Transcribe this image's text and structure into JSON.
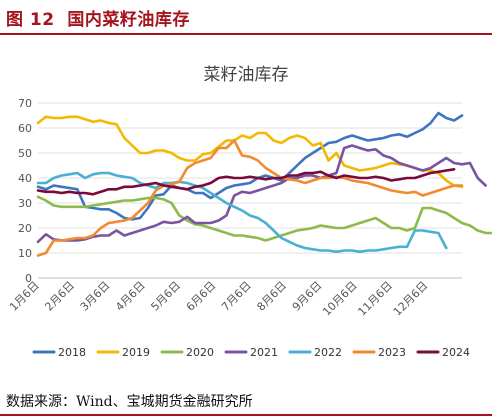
{
  "figure": {
    "label": "图 12",
    "title": "国内菜籽油库存",
    "source": "数据来源：Wind、宝城期货金融研究所"
  },
  "chart_data": {
    "type": "line",
    "title": "菜籽油库存",
    "xlabel": "",
    "ylabel": "",
    "ylim": [
      0,
      70
    ],
    "yticks": [
      0,
      10,
      20,
      30,
      40,
      50,
      60,
      70
    ],
    "xticks": [
      "1月6日",
      "2月6日",
      "3月6日",
      "4月6日",
      "5月6日",
      "6月6日",
      "7月6日",
      "8月6日",
      "9月6日",
      "10月6日",
      "11月6日",
      "12月6日"
    ],
    "x_unit": "week",
    "weeks": 52,
    "grid": "horizontal",
    "legend_position": "bottom",
    "series": [
      {
        "name": "2018",
        "color": "#3e75c2",
        "values": [
          36.5,
          35.5,
          37,
          36.5,
          36,
          35.5,
          28.5,
          28,
          27.5,
          27.5,
          26,
          24,
          23.5,
          24,
          28,
          33,
          33.5,
          37,
          36,
          35.5,
          34,
          34,
          32,
          34,
          36,
          37,
          37.5,
          38,
          40,
          41,
          40,
          39,
          42,
          45,
          48,
          50,
          52,
          54,
          54.5,
          56,
          57,
          56,
          55,
          55.5,
          56,
          57,
          57.5,
          56.5,
          58,
          59.5,
          62,
          66,
          64,
          63,
          65
        ]
      },
      {
        "name": "2019",
        "color": "#f5b800",
        "values": [
          62,
          64.5,
          64,
          64,
          64.5,
          64.5,
          63.5,
          62.5,
          63,
          62,
          61.5,
          56,
          53,
          50,
          50,
          51,
          51,
          50,
          48,
          47,
          47,
          49.5,
          50,
          52.5,
          55,
          55,
          57,
          56,
          58,
          58,
          55,
          54,
          56,
          57,
          56,
          53,
          54,
          47,
          50,
          45,
          44,
          43,
          43.5,
          44,
          45,
          46,
          45.5,
          45,
          44,
          43,
          43,
          42,
          39,
          37,
          36.5
        ]
      },
      {
        "name": "2020",
        "color": "#8dbb4a",
        "values": [
          32.5,
          31,
          29,
          28.5,
          28.5,
          28.5,
          28.5,
          29,
          29.5,
          30,
          30.5,
          31,
          31,
          31.5,
          32,
          32,
          31.5,
          30,
          25,
          23,
          21.5,
          21,
          20,
          19,
          18,
          17,
          17,
          16.5,
          16,
          15,
          16,
          17,
          18,
          19,
          19.5,
          20,
          21,
          20.5,
          20,
          20,
          21,
          22,
          23,
          24,
          22,
          20,
          20,
          19,
          20,
          28,
          28,
          27,
          26,
          24,
          22,
          21,
          19,
          18,
          18,
          18
        ]
      },
      {
        "name": "2021",
        "color": "#7a54a0",
        "values": [
          14.5,
          17.5,
          15.5,
          15,
          15,
          15,
          15.5,
          16.5,
          17,
          17,
          19,
          17,
          18,
          19,
          20,
          21,
          22.5,
          22,
          22.5,
          24.5,
          22,
          22,
          22,
          23,
          25,
          33,
          34.5,
          34,
          35,
          36,
          37,
          38,
          40,
          40,
          41,
          41,
          40,
          41,
          42,
          52,
          53,
          52,
          51,
          51.5,
          49,
          48,
          46,
          45,
          44,
          43,
          44,
          46,
          48,
          46,
          45.5,
          46,
          40,
          37
        ]
      },
      {
        "name": "2022",
        "color": "#49b0d4",
        "values": [
          38,
          38,
          40,
          41,
          41.5,
          42,
          40,
          41.5,
          42,
          42,
          41,
          40.5,
          40,
          38,
          37,
          36,
          38,
          38,
          38.5,
          38,
          37,
          36,
          34,
          32,
          30,
          28.5,
          27,
          25,
          24,
          22,
          19,
          16,
          14.5,
          13,
          12,
          11.5,
          11,
          11,
          10.5,
          11,
          11,
          10.5,
          11,
          11,
          11.5,
          12,
          12.5,
          12.5,
          19,
          19,
          18.5,
          18,
          12
        ]
      },
      {
        "name": "2023",
        "color": "#f28a30",
        "values": [
          9,
          10,
          15,
          15,
          15.5,
          16,
          16,
          17,
          20,
          22,
          22.5,
          23,
          24,
          27,
          30,
          35,
          37,
          37.5,
          38.5,
          44,
          46,
          47,
          48,
          52,
          52,
          55,
          49,
          48.5,
          47,
          44,
          42,
          40,
          39.5,
          39,
          38,
          39,
          40,
          40,
          40.5,
          40,
          39,
          38.5,
          38,
          37,
          36,
          35,
          34.5,
          34,
          34.5,
          33,
          34,
          35,
          36,
          37,
          37
        ]
      },
      {
        "name": "2024",
        "color": "#7b0a3c",
        "values": [
          35,
          34.5,
          34.5,
          34,
          34.5,
          34,
          34,
          33.5,
          34.5,
          35.5,
          35.5,
          36.5,
          36.5,
          37,
          37.5,
          38,
          37,
          36.5,
          36,
          35.5,
          36.5,
          37,
          38,
          40,
          40.5,
          40,
          40,
          40.5,
          40,
          39.5,
          40,
          40,
          41,
          41,
          42,
          42,
          42.5,
          41,
          40,
          41,
          40.5,
          40,
          40,
          40.5,
          40,
          39,
          39.5,
          40,
          40,
          41,
          42,
          42.5,
          43,
          43.5
        ]
      }
    ]
  }
}
